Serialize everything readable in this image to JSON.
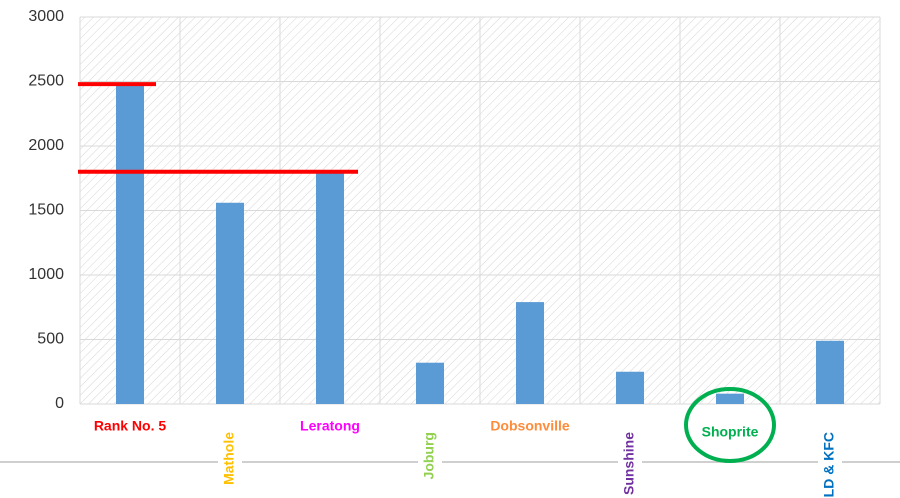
{
  "chart_data": {
    "type": "bar",
    "categories": [
      "Rank No. 5",
      "Mathole",
      "Leratong",
      "Joburg",
      "Dobsonville",
      "Sunshine",
      "Shoprite",
      "LD & KFC"
    ],
    "values": [
      2480,
      1560,
      1800,
      320,
      790,
      250,
      80,
      490
    ],
    "color": "#5b9bd5",
    "label_colors": [
      "#ff0000",
      "#ffc000",
      "#ff00ff",
      "#92d050",
      "#ff8c3a",
      "#7030a0",
      "#00b050",
      "#0070c0"
    ],
    "ylim": [
      0,
      3000
    ],
    "yticks": [
      0,
      500,
      1000,
      1500,
      2000,
      2500,
      3000
    ],
    "grid": true
  }
}
